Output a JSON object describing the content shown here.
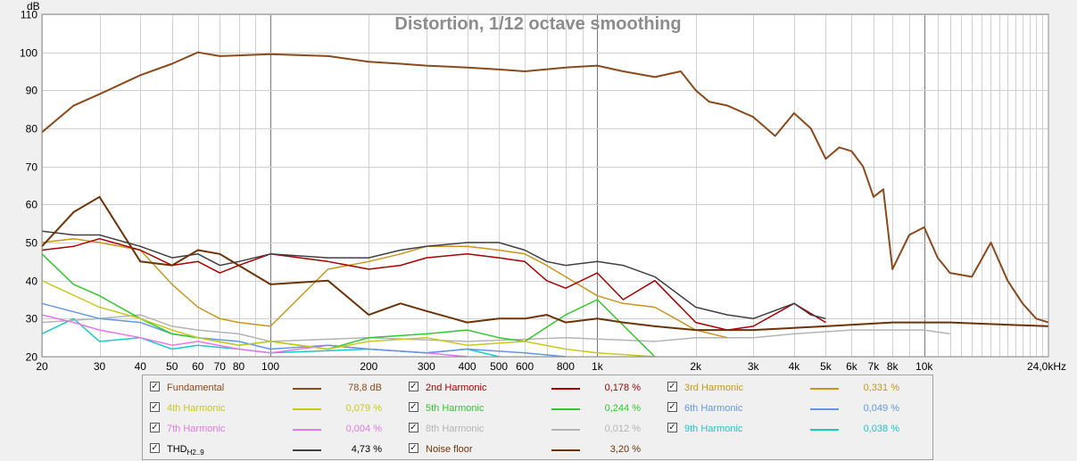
{
  "chart_data": {
    "type": "line",
    "title": "Distortion, 1/12 octave smoothing",
    "ylabel": "dB",
    "xlabel": "",
    "xscale": "log",
    "xlim": [
      20,
      24000
    ],
    "ylim": [
      20,
      110
    ],
    "y_ticks": [
      "20",
      "30",
      "40",
      "50",
      "60",
      "70",
      "80",
      "90",
      "100",
      "110"
    ],
    "x_ticks": [
      {
        "f": 20,
        "label": "20"
      },
      {
        "f": 30,
        "label": "30"
      },
      {
        "f": 40,
        "label": "40"
      },
      {
        "f": 50,
        "label": "50"
      },
      {
        "f": 60,
        "label": "60"
      },
      {
        "f": 70,
        "label": "70"
      },
      {
        "f": 80,
        "label": "80"
      },
      {
        "f": 100,
        "label": "100"
      },
      {
        "f": 200,
        "label": "200"
      },
      {
        "f": 300,
        "label": "300"
      },
      {
        "f": 400,
        "label": "400"
      },
      {
        "f": 500,
        "label": "500"
      },
      {
        "f": 600,
        "label": "600"
      },
      {
        "f": 800,
        "label": "800"
      },
      {
        "f": 1000,
        "label": "1k"
      },
      {
        "f": 2000,
        "label": "2k"
      },
      {
        "f": 3000,
        "label": "3k"
      },
      {
        "f": 4000,
        "label": "4k"
      },
      {
        "f": 5000,
        "label": "5k"
      },
      {
        "f": 6000,
        "label": "6k"
      },
      {
        "f": 7000,
        "label": "7k"
      },
      {
        "f": 8000,
        "label": "8k"
      },
      {
        "f": 10000,
        "label": "10k"
      },
      {
        "f": 24000,
        "label": "24,0kHz"
      }
    ],
    "series": [
      {
        "name": "Fundamental",
        "color": "#8b4a1c",
        "x": [
          20,
          25,
          30,
          40,
          50,
          60,
          70,
          100,
          150,
          200,
          250,
          300,
          400,
          500,
          600,
          800,
          1000,
          1200,
          1500,
          1800,
          2000,
          2200,
          2500,
          3000,
          3500,
          4000,
          4500,
          5000,
          5500,
          6000,
          6500,
          7000,
          7500,
          8000,
          9000,
          10000,
          11000,
          12000,
          14000,
          16000,
          18000,
          20000,
          22000,
          24000
        ],
        "y": [
          79,
          86,
          89,
          94,
          97,
          100,
          99,
          99.5,
          99,
          97.5,
          97,
          96.5,
          96,
          95.5,
          95,
          96,
          96.5,
          95,
          93.5,
          95,
          90,
          87,
          86,
          83,
          78,
          84,
          80,
          72,
          75,
          74,
          70,
          62,
          64,
          43,
          52,
          54,
          46,
          42,
          41,
          50,
          40,
          34,
          30,
          29
        ]
      },
      {
        "name": "2nd Harmonic",
        "color": "#a80000",
        "x": [
          20,
          25,
          30,
          40,
          50,
          60,
          70,
          80,
          100,
          150,
          200,
          250,
          300,
          400,
          500,
          600,
          700,
          800,
          1000,
          1200,
          1500,
          2000,
          2500,
          3000,
          4000,
          5000
        ],
        "y": [
          48,
          49,
          51,
          48,
          44,
          45,
          42,
          44,
          47,
          45,
          43,
          44,
          46,
          47,
          46,
          45,
          40,
          38,
          42,
          35,
          40,
          29,
          27,
          28,
          34,
          29
        ]
      },
      {
        "name": "3rd Harmonic",
        "color": "#c8961e",
        "x": [
          20,
          25,
          30,
          40,
          50,
          60,
          70,
          80,
          100,
          150,
          200,
          250,
          300,
          400,
          500,
          600,
          700,
          800,
          1000,
          1200,
          1500,
          2000,
          2500
        ],
        "y": [
          50,
          51,
          50,
          48,
          39,
          33,
          30,
          29,
          28,
          43,
          45,
          47,
          49,
          49,
          48,
          47,
          44,
          41,
          36,
          34,
          33,
          27,
          25
        ]
      },
      {
        "name": "4th Harmonic",
        "color": "#c8c81e",
        "x": [
          20,
          30,
          40,
          50,
          60,
          80,
          100,
          150,
          200,
          300,
          400,
          600,
          800,
          1000,
          1500
        ],
        "y": [
          40,
          33,
          30,
          27,
          25,
          23,
          24,
          22,
          24,
          25,
          23,
          24,
          22,
          21,
          20
        ]
      },
      {
        "name": "5th Harmonic",
        "color": "#32c832",
        "x": [
          20,
          25,
          30,
          40,
          50,
          60,
          80,
          100,
          150,
          200,
          300,
          400,
          500,
          600,
          800,
          1000,
          1500
        ],
        "y": [
          47,
          39,
          36,
          30,
          26,
          25,
          23,
          24,
          22,
          25,
          26,
          27,
          25,
          24,
          31,
          35,
          20
        ]
      },
      {
        "name": "6th Harmonic",
        "color": "#6496e6",
        "x": [
          20,
          30,
          40,
          50,
          60,
          80,
          100,
          150,
          200,
          300,
          400,
          600,
          800
        ],
        "y": [
          34,
          30,
          29,
          26,
          25,
          24,
          22,
          23,
          22,
          21,
          22,
          21,
          20
        ]
      },
      {
        "name": "7th Harmonic",
        "color": "#e678e6",
        "x": [
          20,
          25,
          30,
          40,
          50,
          60,
          80,
          100,
          150,
          200,
          300,
          400
        ],
        "y": [
          31,
          29,
          27,
          25,
          23,
          24,
          22,
          21,
          23,
          22,
          21,
          20
        ]
      },
      {
        "name": "8th Harmonic",
        "color": "#b4b4b4",
        "x": [
          20,
          30,
          40,
          50,
          60,
          80,
          100,
          200,
          400,
          800,
          1500,
          2000,
          3000,
          4000,
          6000,
          8000,
          10000,
          12000
        ],
        "y": [
          29,
          30,
          31,
          28,
          27,
          26,
          24,
          25,
          24,
          25,
          24,
          25,
          25,
          26,
          27,
          27,
          27,
          26
        ]
      },
      {
        "name": "9th Harmonic",
        "color": "#1ec8c8",
        "x": [
          20,
          25,
          30,
          40,
          50,
          60,
          80,
          100,
          200,
          300,
          400,
          500
        ],
        "y": [
          26,
          30,
          24,
          25,
          22,
          23,
          22,
          21,
          22,
          21,
          22,
          20
        ]
      },
      {
        "name": "THD",
        "color": "#404040",
        "x": [
          20,
          25,
          30,
          40,
          50,
          60,
          70,
          80,
          100,
          150,
          200,
          250,
          300,
          400,
          500,
          600,
          700,
          800,
          1000,
          1200,
          1500,
          2000,
          2500,
          3000,
          4000,
          4500,
          5000
        ],
        "y": [
          53,
          52,
          52,
          49,
          46,
          47,
          44,
          45,
          47,
          46,
          46,
          48,
          49,
          50,
          50,
          48,
          45,
          44,
          45,
          44,
          41,
          33,
          31,
          30,
          34,
          31,
          30
        ]
      },
      {
        "name": "Noise floor",
        "color": "#6e3208",
        "x": [
          20,
          25,
          30,
          40,
          50,
          60,
          70,
          80,
          100,
          150,
          200,
          250,
          300,
          400,
          500,
          600,
          700,
          800,
          1000,
          1200,
          1500,
          2000,
          3000,
          5000,
          8000,
          12000,
          24000
        ],
        "y": [
          49,
          58,
          62,
          45,
          44,
          48,
          47,
          44,
          39,
          40,
          31,
          34,
          32,
          29,
          30,
          30,
          31,
          29,
          30,
          29,
          28,
          27,
          27,
          28,
          29,
          29,
          28
        ]
      }
    ]
  },
  "legend": [
    {
      "label": "Fundamental",
      "sub": "",
      "value": "78,8 dB",
      "color": "#8b4a1c",
      "checked": true
    },
    {
      "label": "2nd Harmonic",
      "sub": "",
      "value": "0,178 %",
      "color": "#a80000",
      "checked": true
    },
    {
      "label": "3rd Harmonic",
      "sub": "",
      "value": "0,331 %",
      "color": "#c8961e",
      "checked": true
    },
    {
      "label": "4th Harmonic",
      "sub": "",
      "value": "0,079 %",
      "color": "#c8c81e",
      "checked": true
    },
    {
      "label": "5th Harmonic",
      "sub": "",
      "value": "0,244 %",
      "color": "#32c832",
      "checked": true
    },
    {
      "label": "6th Harmonic",
      "sub": "",
      "value": "0,049 %",
      "color": "#6496e6",
      "checked": true
    },
    {
      "label": "7th Harmonic",
      "sub": "",
      "value": "0,004 %",
      "color": "#e678e6",
      "checked": true
    },
    {
      "label": "8th Harmonic",
      "sub": "",
      "value": "0,012 %",
      "color": "#b4b4b4",
      "checked": true
    },
    {
      "label": "9th Harmonic",
      "sub": "",
      "value": "0,038 %",
      "color": "#1ec8c8",
      "checked": true
    },
    {
      "label": "THD",
      "sub": "H2..9",
      "value": "4,73 %",
      "color": "#404040",
      "checked": true
    },
    {
      "label": "Noise floor",
      "sub": "",
      "value": "3,20 %",
      "color": "#6e3208",
      "checked": true
    }
  ],
  "checkmark": "✓"
}
